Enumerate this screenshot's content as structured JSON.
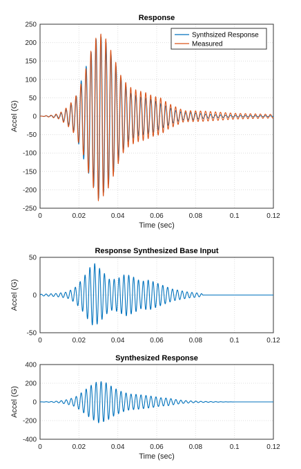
{
  "chart_data": [
    {
      "type": "line",
      "title": "Response",
      "xlabel": "Time (sec)",
      "ylabel": "Accel (G)",
      "xlim": [
        0,
        0.12
      ],
      "ylim": [
        -250,
        250
      ],
      "xticks": [
        "0",
        "0.02",
        "0.04",
        "0.06",
        "0.08",
        "0.1",
        "0.12"
      ],
      "yticks": [
        "-250",
        "-200",
        "-150",
        "-100",
        "-50",
        "0",
        "50",
        "100",
        "150",
        "200",
        "250"
      ],
      "grid": true,
      "legend_position": "top-right",
      "series": [
        {
          "name": "Synthsized Response",
          "color": "#0072BD",
          "envelope": {
            "x": [
              0,
              0.006,
              0.01,
              0.014,
              0.018,
              0.022,
              0.026,
              0.03,
              0.034,
              0.038,
              0.042,
              0.046,
              0.05,
              0.054,
              0.058,
              0.062,
              0.066,
              0.07,
              0.074,
              0.078,
              0.084,
              0.09,
              0.1,
              0.12
            ],
            "y": [
              0,
              2,
              5,
              20,
              45,
              110,
              170,
              225,
              200,
              150,
              100,
              65,
              55,
              50,
              45,
              35,
              25,
              15,
              10,
              10,
              6,
              4,
              2,
              1
            ]
          },
          "frequency_hz": 390
        },
        {
          "name": "Measured",
          "color": "#D95319",
          "envelope": {
            "x": [
              0,
              0.006,
              0.01,
              0.014,
              0.018,
              0.022,
              0.026,
              0.03,
              0.034,
              0.038,
              0.042,
              0.046,
              0.05,
              0.054,
              0.058,
              0.062,
              0.066,
              0.07,
              0.074,
              0.078,
              0.084,
              0.09,
              0.1,
              0.12
            ],
            "y": [
              0,
              3,
              8,
              25,
              50,
              100,
              175,
              230,
              210,
              160,
              105,
              80,
              70,
              65,
              55,
              50,
              35,
              25,
              15,
              15,
              14,
              12,
              8,
              5
            ]
          },
          "frequency_hz": 390
        }
      ]
    },
    {
      "type": "line",
      "title": "Response Synthesized Base Input",
      "xlabel": "",
      "ylabel": "Accel (G)",
      "xlim": [
        0,
        0.12
      ],
      "ylim": [
        -50,
        50
      ],
      "xticks": [
        "0",
        "0.02",
        "0.04",
        "0.06",
        "0.08",
        "0.1",
        "0.12"
      ],
      "yticks": [
        "-50",
        "0",
        "50"
      ],
      "grid": true,
      "series": [
        {
          "color": "#0072BD",
          "envelope": {
            "x": [
              0,
              0.008,
              0.014,
              0.018,
              0.022,
              0.026,
              0.028,
              0.032,
              0.036,
              0.04,
              0.044,
              0.048,
              0.052,
              0.056,
              0.06,
              0.064,
              0.068,
              0.072,
              0.076,
              0.08,
              0.083,
              0.084,
              0.12
            ],
            "y": [
              1,
              2,
              4,
              10,
              22,
              38,
              42,
              32,
              20,
              22,
              28,
              24,
              18,
              20,
              16,
              12,
              8,
              6,
              4,
              3,
              2,
              0,
              0
            ]
          },
          "frequency_hz": 400
        }
      ]
    },
    {
      "type": "line",
      "title": "Synthesized Response",
      "xlabel": "Time (sec)",
      "ylabel": "Accel (G)",
      "xlim": [
        0,
        0.12
      ],
      "ylim": [
        -400,
        400
      ],
      "xticks": [
        "0",
        "0.02",
        "0.04",
        "0.06",
        "0.08",
        "0.1",
        "0.12"
      ],
      "yticks": [
        "-400",
        "-200",
        "0",
        "200",
        "400"
      ],
      "grid": true,
      "series": [
        {
          "color": "#0072BD",
          "envelope": {
            "x": [
              0,
              0.006,
              0.01,
              0.014,
              0.018,
              0.022,
              0.026,
              0.03,
              0.034,
              0.038,
              0.042,
              0.046,
              0.05,
              0.054,
              0.058,
              0.062,
              0.066,
              0.07,
              0.074,
              0.078,
              0.084,
              0.09,
              0.096,
              0.1,
              0.12
            ],
            "y": [
              0,
              4,
              10,
              25,
              50,
              110,
              175,
              225,
              205,
              150,
              110,
              85,
              80,
              70,
              60,
              45,
              40,
              25,
              15,
              10,
              5,
              3,
              1,
              0,
              0
            ]
          },
          "frequency_hz": 390
        }
      ]
    }
  ]
}
